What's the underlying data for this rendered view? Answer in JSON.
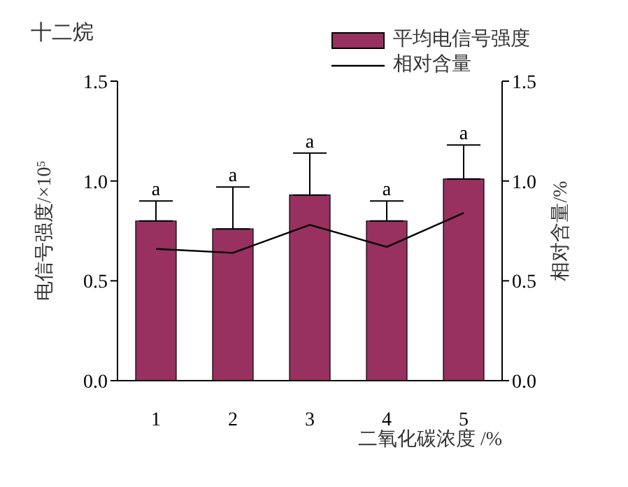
{
  "chart_data": {
    "type": "bar",
    "title": "十二烷",
    "xlabel": "二氧化碳浓度 /%",
    "ylabel": "电信号强度/×10$^{5}$",
    "y2label": "相对含量/%",
    "categories": [
      "1",
      "2",
      "3",
      "4",
      "5"
    ],
    "series": [
      {
        "name": "平均电信号强度",
        "color": "#983160",
        "values": [
          0.8,
          0.76,
          0.93,
          0.8,
          1.01
        ],
        "errors": [
          [
            0.8,
            0.9
          ],
          [
            0.76,
            0.97
          ],
          [
            0.93,
            1.14
          ],
          [
            0.8,
            0.9
          ],
          [
            1.01,
            1.18
          ]
        ]
      },
      {
        "name": "相对含量",
        "type": "line",
        "axis": "y2",
        "color": "#000000",
        "values": [
          0.66,
          0.64,
          0.78,
          0.67,
          0.84
        ]
      }
    ],
    "annotations": [
      {
        "text": "a",
        "x": "1",
        "y": 0.9
      },
      {
        "text": "a",
        "x": "2",
        "y": 0.97
      },
      {
        "text": "a",
        "x": "3",
        "y": 1.14
      },
      {
        "text": "a",
        "x": "4",
        "y": 0.9
      },
      {
        "text": "a",
        "x": "5",
        "y": 1.18
      }
    ],
    "ylim": [
      0,
      1.5
    ],
    "yticks": [
      {
        "value": 0,
        "label": "0.0"
      },
      0.5,
      {
        "value": 1,
        "label": "1.0"
      },
      1.5
    ],
    "y2lim": [
      0,
      1.5
    ],
    "y2ticks": [
      {
        "value": 0,
        "label": "0.0"
      },
      0.5,
      {
        "value": 1,
        "label": "1.0"
      },
      1.5
    ],
    "legend": "top right",
    "grid": false,
    "marker": "none",
    "line_style": "solid"
  }
}
